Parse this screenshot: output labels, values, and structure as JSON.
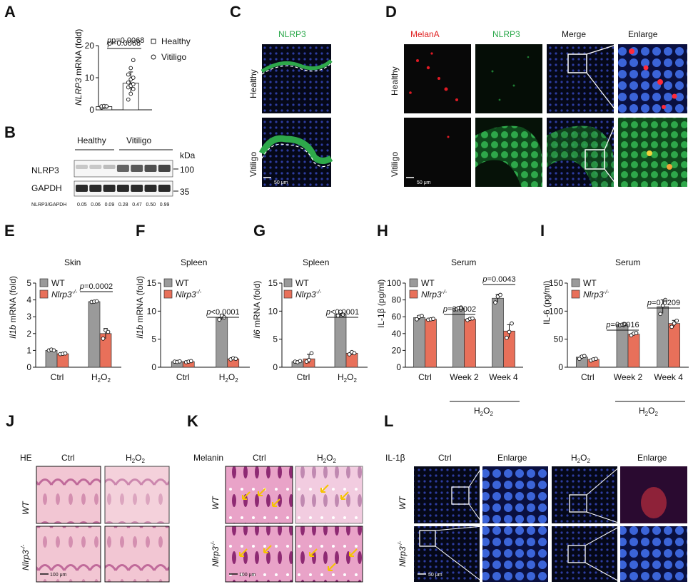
{
  "panels": {
    "A": {
      "label": "A",
      "pvalue": "p=0.0068",
      "ylabel_gene": "NLRP3",
      "ylabel_rest": " mRNA (fold)",
      "legend_healthy": "Healthy",
      "legend_vitiligo": "Vitiligo"
    },
    "B": {
      "label": "B",
      "group_healthy": "Healthy",
      "group_vitiligo": "Vitiligo",
      "unit": "kDa",
      "row1": "NLRP3",
      "row2": "GAPDH",
      "mw1": "100",
      "mw2": "35",
      "ratio_label": "NLRP3/GAPDH",
      "ratios": [
        "0.05",
        "0.06",
        "0.09",
        "0.28",
        "0.47",
        "0.50",
        "0.99"
      ]
    },
    "C": {
      "label": "C",
      "title": "NLRP3",
      "row1": "Healthy",
      "row2": "Vitiligo",
      "scale": "50 μm"
    },
    "D": {
      "label": "D",
      "col1": "MelanA",
      "col2": "NLRP3",
      "col3": "Merge",
      "col4": "Enlarge",
      "row1": "Healthy",
      "row2": "Vitiligo",
      "scale": "50 μm"
    },
    "E": {
      "label": "E",
      "title": "Skin",
      "ylabel_gene": "Il1b",
      "ylabel_rest": " mRNA (fold)",
      "pvalue": "p=0.0002"
    },
    "F": {
      "label": "F",
      "title": "Spleen",
      "ylabel_gene": "Il1b",
      "ylabel_rest": " mRNA (fold)",
      "pvalue": "p<0.0001"
    },
    "G": {
      "label": "G",
      "title": "Spleen",
      "ylabel_gene": "Il6",
      "ylabel_rest": " mRNA (fold)",
      "pvalue": "p<0.0001"
    },
    "H": {
      "label": "H",
      "title": "Serum",
      "ylabel": "IL-1β (pg/ml)",
      "p1": "p=0.0002",
      "p2": "p=0.0043",
      "treatment": "H2O2"
    },
    "I": {
      "label": "I",
      "title": "Serum",
      "ylabel": "IL-6 (pg/ml)",
      "p1": "p=0.0016",
      "p2": "p=0.0209",
      "treatment": "H2O2"
    },
    "J": {
      "label": "J",
      "stain": "HE",
      "col1": "Ctrl",
      "col2": "H2O2",
      "row1": "WT",
      "row2": "Nlrp3-/-",
      "scale": "100 μm"
    },
    "K": {
      "label": "K",
      "stain": "Melanin",
      "col1": "Ctrl",
      "col2": "H2O2",
      "row1": "WT",
      "row2": "Nlrp3-/-",
      "scale": "100 μm"
    },
    "L": {
      "label": "L",
      "stain": "IL-1β",
      "col1": "Ctrl",
      "col2": "Enlarge",
      "col3": "H2O2",
      "col4": "Enlarge",
      "row1": "WT",
      "row2": "Nlrp3-/-",
      "scale": "50 μm"
    }
  },
  "legend_wt": "WT",
  "legend_ko": "Nlrp3-/-",
  "colors": {
    "wt": "#9a9a9a",
    "ko": "#e8705a"
  },
  "chart_data": [
    {
      "id": "A",
      "type": "bar",
      "categories": [
        "Healthy",
        "Vitiligo"
      ],
      "values": [
        1.0,
        8.3
      ],
      "errors": [
        0.4,
        3.5
      ],
      "points": [
        [
          0.7,
          0.9,
          1.0,
          1.1,
          1.2,
          1.1
        ],
        [
          3.2,
          5.0,
          6.5,
          7.0,
          7.5,
          8.0,
          8.5,
          9.5,
          10.0,
          11.0,
          13.0,
          15.5
        ]
      ],
      "ylim": [
        0,
        20
      ],
      "yticks": [
        0,
        10,
        20
      ]
    },
    {
      "id": "E",
      "type": "bar",
      "categories": [
        "Ctrl",
        "H2O2"
      ],
      "series": [
        {
          "name": "WT",
          "values": [
            1.0,
            3.9
          ],
          "errors": [
            0.05,
            0.05
          ],
          "points": [
            [
              1.0,
              1.05,
              1.0
            ],
            [
              3.88,
              3.9,
              3.92
            ]
          ]
        },
        {
          "name": "Nlrp3-/-",
          "values": [
            0.8,
            2.0
          ],
          "errors": [
            0.05,
            0.3
          ],
          "points": [
            [
              0.78,
              0.8,
              0.82
            ],
            [
              1.7,
              2.2,
              2.1
            ]
          ]
        }
      ],
      "ylim": [
        0,
        5
      ],
      "yticks": [
        0,
        1,
        2,
        3,
        4,
        5
      ]
    },
    {
      "id": "F",
      "type": "bar",
      "categories": [
        "Ctrl",
        "H2O2"
      ],
      "series": [
        {
          "name": "WT",
          "values": [
            1.0,
            8.9
          ],
          "errors": [
            0.1,
            0.5
          ],
          "points": [
            [
              1.0,
              0.95,
              1.05
            ],
            [
              8.5,
              9.2,
              8.9
            ]
          ]
        },
        {
          "name": "Nlrp3-/-",
          "values": [
            1.0,
            1.5
          ],
          "errors": [
            0.1,
            0.2
          ],
          "points": [
            [
              0.9,
              1.0,
              1.1
            ],
            [
              1.4,
              1.6,
              1.5
            ]
          ]
        }
      ],
      "ylim": [
        0,
        15
      ],
      "yticks": [
        0,
        5,
        10,
        15
      ]
    },
    {
      "id": "G",
      "type": "bar",
      "categories": [
        "Ctrl",
        "H2O2"
      ],
      "series": [
        {
          "name": "WT",
          "values": [
            1.0,
            9.5
          ],
          "errors": [
            0.1,
            0.4
          ],
          "points": [
            [
              1.0,
              0.9,
              1.1
            ],
            [
              9.2,
              9.9,
              9.4
            ]
          ]
        },
        {
          "name": "Nlrp3-/-",
          "values": [
            1.5,
            2.5
          ],
          "errors": [
            0.8,
            0.3
          ],
          "points": [
            [
              1.0,
              1.3,
              2.5
            ],
            [
              2.3,
              2.7,
              2.5
            ]
          ]
        }
      ],
      "ylim": [
        0,
        15
      ],
      "yticks": [
        0,
        5,
        10,
        15
      ]
    },
    {
      "id": "H",
      "type": "bar",
      "categories": [
        "Ctrl",
        "Week 2",
        "Week 4"
      ],
      "series": [
        {
          "name": "WT",
          "values": [
            59,
            70,
            82
          ],
          "errors": [
            2.5,
            1.0,
            4.5
          ],
          "points": [
            [
              57,
              60,
              61
            ],
            [
              69,
              70.5,
              71
            ],
            [
              77,
              84,
              86
            ]
          ]
        },
        {
          "name": "Nlrp3-/-",
          "values": [
            57,
            57,
            43
          ],
          "errors": [
            0.6,
            1.0,
            7.5
          ],
          "points": [
            [
              56.5,
              57,
              57.5
            ],
            [
              56,
              57.5,
              58
            ],
            [
              35,
              42,
              52
            ]
          ]
        }
      ],
      "ylim": [
        0,
        100
      ],
      "yticks": [
        0,
        20,
        40,
        60,
        80,
        100
      ]
    },
    {
      "id": "I",
      "type": "bar",
      "categories": [
        "Ctrl",
        "Week 2",
        "Week 4"
      ],
      "series": [
        {
          "name": "WT",
          "values": [
            18,
            76,
            108
          ],
          "errors": [
            2.5,
            1.0,
            12
          ],
          "points": [
            [
              15,
              19,
              20
            ],
            [
              75,
              76,
              77
            ],
            [
              95,
              110,
              120
            ]
          ]
        },
        {
          "name": "Nlrp3-/-",
          "values": [
            14,
            59,
            78
          ],
          "errors": [
            1.5,
            2.5,
            5.5
          ],
          "points": [
            [
              12,
              14,
              15
            ],
            [
              57,
              60,
              61
            ],
            [
              72,
              78,
              83
            ]
          ]
        }
      ],
      "ylim": [
        0,
        150
      ],
      "yticks": [
        0,
        50,
        100,
        150
      ]
    }
  ]
}
